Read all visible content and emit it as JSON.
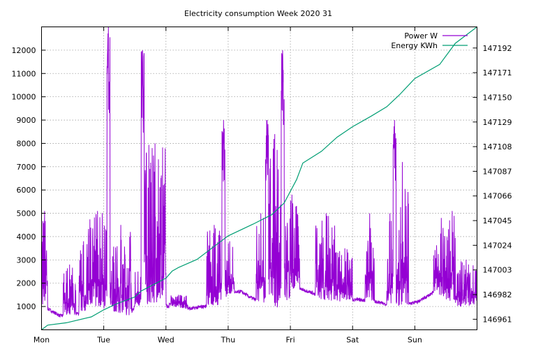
{
  "chart_data": {
    "type": "line",
    "title": "Electricity consumption Week 2020 31",
    "x_categories": [
      "Mon",
      "Tue",
      "Wed",
      "Thu",
      "Fri",
      "Sat",
      "Sun"
    ],
    "x_unit": "days since Mon 00:00",
    "xlim": [
      0,
      7
    ],
    "y_left": {
      "ticks": [
        1000,
        2000,
        3000,
        4000,
        5000,
        6000,
        7000,
        8000,
        9000,
        10000,
        11000,
        12000
      ],
      "lim": [
        0,
        13000
      ]
    },
    "y_right": {
      "ticks": [
        146961,
        146982,
        147003,
        147024,
        147045,
        147066,
        147087,
        147108,
        147129,
        147150,
        147171,
        147192
      ],
      "lim": [
        146952,
        147210
      ]
    },
    "grid": true,
    "legend_position": "top-right",
    "series": [
      {
        "name": "Power W",
        "axis": "left",
        "color": "#9400d3",
        "baseline": [
          [
            0,
            1050
          ],
          [
            0.3,
            600
          ],
          [
            0.6,
            700
          ],
          [
            0.85,
            1000
          ],
          [
            1.15,
            800
          ],
          [
            1.4,
            600
          ],
          [
            1.5,
            1000
          ],
          [
            1.8,
            1150
          ],
          [
            2.05,
            1000
          ],
          [
            2.4,
            900
          ],
          [
            2.6,
            1000
          ],
          [
            2.85,
            1050
          ],
          [
            3.0,
            1500
          ],
          [
            3.2,
            1650
          ],
          [
            3.35,
            1400
          ],
          [
            3.75,
            900
          ],
          [
            3.95,
            1200
          ],
          [
            4.1,
            1800
          ],
          [
            4.35,
            1600
          ],
          [
            4.5,
            1300
          ],
          [
            4.85,
            1200
          ],
          [
            5.0,
            1300
          ],
          [
            5.3,
            1250
          ],
          [
            5.7,
            1000
          ],
          [
            6.05,
            1200
          ],
          [
            6.3,
            1600
          ],
          [
            6.45,
            1400
          ],
          [
            6.7,
            1000
          ],
          [
            6.95,
            1050
          ],
          [
            7.0,
            1100
          ]
        ],
        "bursts": [
          {
            "start": 0.0,
            "end": 0.1,
            "peak": 5100
          },
          {
            "start": 0.35,
            "end": 0.55,
            "peak": 2800
          },
          {
            "start": 0.6,
            "end": 0.75,
            "peak": 3800
          },
          {
            "start": 0.75,
            "end": 1.05,
            "peak": 5100
          },
          {
            "start": 1.05,
            "end": 1.1,
            "peak": 13000
          },
          {
            "start": 1.1,
            "end": 1.45,
            "peak": 4500
          },
          {
            "start": 1.5,
            "end": 1.6,
            "peak": 2500
          },
          {
            "start": 1.6,
            "end": 1.65,
            "peak": 12000
          },
          {
            "start": 1.65,
            "end": 2.0,
            "peak": 8000
          },
          {
            "start": 2.05,
            "end": 2.35,
            "peak": 1500
          },
          {
            "start": 2.65,
            "end": 2.9,
            "peak": 4500
          },
          {
            "start": 2.9,
            "end": 2.95,
            "peak": 9000
          },
          {
            "start": 2.95,
            "end": 3.1,
            "peak": 3800
          },
          {
            "start": 3.45,
            "end": 3.6,
            "peak": 5000
          },
          {
            "start": 3.6,
            "end": 3.65,
            "peak": 9000
          },
          {
            "start": 3.65,
            "end": 3.85,
            "peak": 8400
          },
          {
            "start": 3.85,
            "end": 3.9,
            "peak": 12000
          },
          {
            "start": 3.9,
            "end": 4.15,
            "peak": 5800
          },
          {
            "start": 4.4,
            "end": 4.75,
            "peak": 5000
          },
          {
            "start": 4.75,
            "end": 5.0,
            "peak": 3500
          },
          {
            "start": 5.2,
            "end": 5.35,
            "peak": 5000
          },
          {
            "start": 5.55,
            "end": 5.65,
            "peak": 5000
          },
          {
            "start": 5.65,
            "end": 5.7,
            "peak": 9000
          },
          {
            "start": 5.7,
            "end": 5.9,
            "peak": 7200
          },
          {
            "start": 6.3,
            "end": 6.55,
            "peak": 4800
          },
          {
            "start": 6.55,
            "end": 6.65,
            "peak": 5100
          },
          {
            "start": 6.65,
            "end": 7.0,
            "peak": 3000
          }
        ]
      },
      {
        "name": "Energy KWh",
        "axis": "right",
        "color": "#009e73",
        "points": [
          [
            0,
            146952
          ],
          [
            0.1,
            146956
          ],
          [
            0.4,
            146958
          ],
          [
            0.8,
            146963
          ],
          [
            1.0,
            146969
          ],
          [
            1.2,
            146974
          ],
          [
            1.5,
            146980
          ],
          [
            1.6,
            146985
          ],
          [
            2.0,
            146996
          ],
          [
            2.1,
            147002
          ],
          [
            2.2,
            147005
          ],
          [
            2.5,
            147012
          ],
          [
            2.75,
            147022
          ],
          [
            3.0,
            147032
          ],
          [
            3.4,
            147042
          ],
          [
            3.7,
            147050
          ],
          [
            3.9,
            147060
          ],
          [
            4.1,
            147080
          ],
          [
            4.2,
            147094
          ],
          [
            4.5,
            147104
          ],
          [
            4.75,
            147116
          ],
          [
            5.0,
            147125
          ],
          [
            5.3,
            147134
          ],
          [
            5.55,
            147142
          ],
          [
            5.75,
            147152
          ],
          [
            6.0,
            147166
          ],
          [
            6.4,
            147178
          ],
          [
            6.65,
            147196
          ],
          [
            7.0,
            147210
          ]
        ]
      }
    ]
  }
}
